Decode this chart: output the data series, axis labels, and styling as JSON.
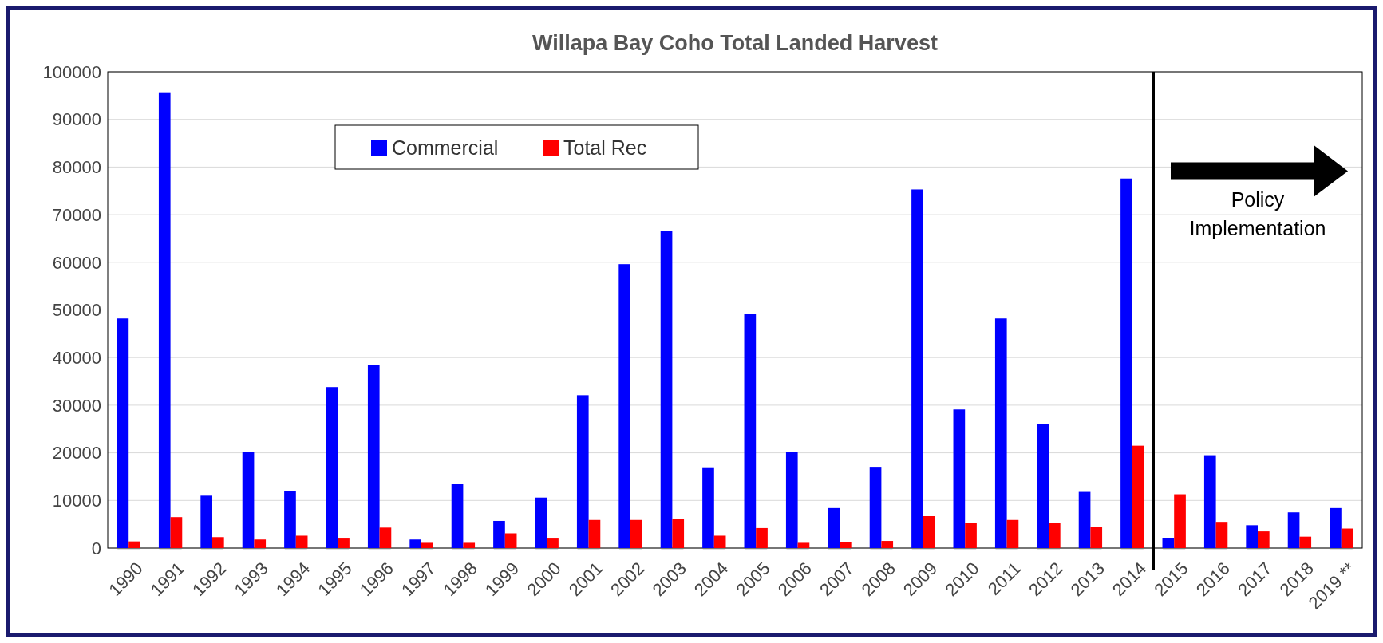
{
  "chart_data": {
    "type": "bar",
    "title": "Willapa Bay Coho Total Landed Harvest",
    "categories": [
      "1990",
      "1991",
      "1992",
      "1993",
      "1994",
      "1995",
      "1996",
      "1997",
      "1998",
      "1999",
      "2000",
      "2001",
      "2002",
      "2003",
      "2004",
      "2005",
      "2006",
      "2007",
      "2008",
      "2009",
      "2010",
      "2011",
      "2012",
      "2013",
      "2014",
      "2015",
      "2016",
      "2017",
      "2018",
      "2019 **"
    ],
    "series": [
      {
        "name": "Commercial",
        "color": "#0000ff",
        "values": [
          48200,
          95700,
          11000,
          20100,
          11900,
          33800,
          38500,
          1800,
          13400,
          5700,
          10600,
          32100,
          59600,
          66600,
          16800,
          49100,
          20200,
          8400,
          16900,
          75300,
          29100,
          48200,
          26000,
          11800,
          77600,
          2100,
          19500,
          4800,
          7500,
          8400
        ]
      },
      {
        "name": "Total Rec",
        "color": "#ff0000",
        "values": [
          1400,
          6500,
          2300,
          1800,
          2600,
          2000,
          4300,
          1100,
          1100,
          3100,
          2000,
          5900,
          5900,
          6100,
          2600,
          4200,
          1100,
          1300,
          1500,
          6700,
          5300,
          5900,
          5200,
          4500,
          21500,
          11300,
          5500,
          3500,
          2400,
          4100
        ]
      }
    ],
    "ylim": [
      0,
      100000
    ],
    "yticks": [
      0,
      10000,
      20000,
      30000,
      40000,
      50000,
      60000,
      70000,
      80000,
      90000,
      100000
    ],
    "grid": "y",
    "legend": "top left",
    "ref_lines": [
      {
        "axis": "x",
        "value": "2015",
        "label": "Policy Implementation",
        "color": "#000000"
      }
    ]
  }
}
